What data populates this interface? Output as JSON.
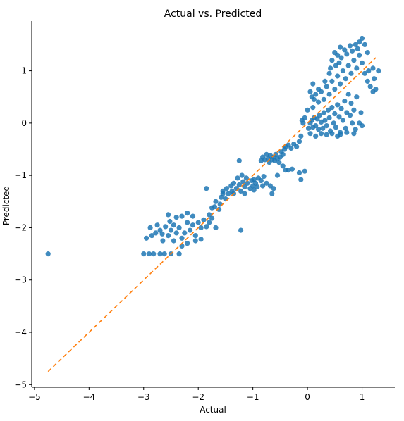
{
  "chart_data": {
    "type": "scatter",
    "title": "Actual vs. Predicted",
    "xlabel": "Actual",
    "ylabel": "Predicted",
    "xlim": [
      -5.05,
      1.6
    ],
    "ylim": [
      -5.05,
      1.95
    ],
    "xticks": [
      -5,
      -4,
      -3,
      -2,
      -1,
      0,
      1
    ],
    "yticks": [
      -5,
      -4,
      -3,
      -2,
      -1,
      0,
      1
    ],
    "xtick_labels": [
      "−5",
      "−4",
      "−3",
      "−2",
      "−1",
      "0",
      "1"
    ],
    "ytick_labels": [
      "−5",
      "−4",
      "−3",
      "−2",
      "−1",
      "0",
      "1"
    ],
    "point_color": "#1f77b4",
    "reference_line": {
      "x": [
        -4.75,
        1.25
      ],
      "y": [
        -4.75,
        1.25
      ],
      "color": "#ff7f0e",
      "style": "dashed"
    },
    "points": [
      [
        -4.75,
        -2.5
      ],
      [
        -3.0,
        -2.5
      ],
      [
        -2.9,
        -2.5
      ],
      [
        -2.82,
        -2.5
      ],
      [
        -2.7,
        -2.5
      ],
      [
        -2.62,
        -2.5
      ],
      [
        -2.5,
        -2.5
      ],
      [
        -2.35,
        -2.5
      ],
      [
        -2.95,
        -2.2
      ],
      [
        -2.85,
        -2.15
      ],
      [
        -2.78,
        -2.1
      ],
      [
        -2.7,
        -2.05
      ],
      [
        -2.66,
        -2.12
      ],
      [
        -2.6,
        -1.98
      ],
      [
        -2.55,
        -2.15
      ],
      [
        -2.5,
        -2.05
      ],
      [
        -2.45,
        -1.95
      ],
      [
        -2.4,
        -2.1
      ],
      [
        -2.35,
        -2.0
      ],
      [
        -2.3,
        -2.2
      ],
      [
        -2.25,
        -2.1
      ],
      [
        -2.2,
        -1.9
      ],
      [
        -2.15,
        -2.05
      ],
      [
        -2.1,
        -1.95
      ],
      [
        -2.05,
        -2.15
      ],
      [
        -2.0,
        -1.9
      ],
      [
        -1.95,
        -2.0
      ],
      [
        -1.9,
        -1.85
      ],
      [
        -1.85,
        -1.98
      ],
      [
        -1.8,
        -1.9
      ],
      [
        -1.75,
        -1.82
      ],
      [
        -1.68,
        -2.0
      ],
      [
        -2.55,
        -1.75
      ],
      [
        -2.4,
        -1.8
      ],
      [
        -2.3,
        -1.78
      ],
      [
        -2.2,
        -1.72
      ],
      [
        -2.1,
        -1.78
      ],
      [
        -2.65,
        -2.25
      ],
      [
        -2.45,
        -2.25
      ],
      [
        -2.3,
        -2.35
      ],
      [
        -2.2,
        -2.3
      ],
      [
        -2.05,
        -2.25
      ],
      [
        -1.95,
        -2.22
      ],
      [
        -2.88,
        -2.0
      ],
      [
        -2.75,
        -1.95
      ],
      [
        -2.52,
        -1.88
      ],
      [
        -1.8,
        -1.75
      ],
      [
        -1.75,
        -1.62
      ],
      [
        -1.7,
        -1.6
      ],
      [
        -1.68,
        -1.5
      ],
      [
        -1.6,
        -1.55
      ],
      [
        -1.58,
        -1.42
      ],
      [
        -1.55,
        -1.3
      ],
      [
        -1.5,
        -1.45
      ],
      [
        -1.48,
        -1.25
      ],
      [
        -1.45,
        -1.35
      ],
      [
        -1.4,
        -1.2
      ],
      [
        -1.38,
        -1.3
      ],
      [
        -1.35,
        -1.15
      ],
      [
        -1.3,
        -1.25
      ],
      [
        -1.28,
        -1.05
      ],
      [
        -1.25,
        -1.18
      ],
      [
        -1.22,
        -1.3
      ],
      [
        -1.2,
        -1.0
      ],
      [
        -1.18,
        -1.12
      ],
      [
        -1.15,
        -1.22
      ],
      [
        -1.12,
        -1.05
      ],
      [
        -1.1,
        -1.15
      ],
      [
        -1.05,
        -1.25
      ],
      [
        -1.02,
        -1.1
      ],
      [
        -1.0,
        -1.2
      ],
      [
        -0.98,
        -1.08
      ],
      [
        -0.95,
        -1.15
      ],
      [
        -0.92,
        -1.22
      ],
      [
        -0.9,
        -1.05
      ],
      [
        -0.85,
        -1.1
      ],
      [
        -0.82,
        -1.2
      ],
      [
        -0.8,
        -1.02
      ],
      [
        -0.75,
        -1.15
      ],
      [
        -0.68,
        -1.2
      ],
      [
        -0.62,
        -1.25
      ],
      [
        -1.85,
        -1.25
      ],
      [
        -1.55,
        -1.35
      ],
      [
        -1.62,
        -1.65
      ],
      [
        -1.35,
        -1.35
      ],
      [
        -1.25,
        -0.72
      ],
      [
        -1.22,
        -2.05
      ],
      [
        -1.15,
        -1.35
      ],
      [
        -0.98,
        -1.28
      ],
      [
        -0.65,
        -1.35
      ],
      [
        -0.55,
        -1.0
      ],
      [
        -0.85,
        -0.72
      ],
      [
        -0.82,
        -0.65
      ],
      [
        -0.78,
        -0.7
      ],
      [
        -0.75,
        -0.6
      ],
      [
        -0.72,
        -0.68
      ],
      [
        -0.7,
        -0.75
      ],
      [
        -0.68,
        -0.62
      ],
      [
        -0.65,
        -0.7
      ],
      [
        -0.62,
        -0.65
      ],
      [
        -0.6,
        -0.72
      ],
      [
        -0.58,
        -0.6
      ],
      [
        -0.55,
        -0.68
      ],
      [
        -0.52,
        -0.75
      ],
      [
        -0.5,
        -0.65
      ],
      [
        -0.48,
        -0.55
      ],
      [
        -0.45,
        -0.6
      ],
      [
        -0.42,
        -0.5
      ],
      [
        -0.4,
        -0.45
      ],
      [
        -0.35,
        -0.42
      ],
      [
        -0.3,
        -0.48
      ],
      [
        -0.25,
        -0.4
      ],
      [
        -0.2,
        -0.45
      ],
      [
        -0.15,
        -0.35
      ],
      [
        -0.12,
        -0.25
      ],
      [
        -0.45,
        -0.82
      ],
      [
        -0.4,
        -0.9
      ],
      [
        -0.35,
        -0.9
      ],
      [
        -0.28,
        -0.88
      ],
      [
        -0.15,
        -0.95
      ],
      [
        -0.12,
        -1.08
      ],
      [
        -0.05,
        -0.92
      ],
      [
        0.02,
        -0.1
      ],
      [
        0.05,
        0.0
      ],
      [
        0.08,
        0.05
      ],
      [
        0.1,
        -0.08
      ],
      [
        0.12,
        0.1
      ],
      [
        0.15,
        -0.05
      ],
      [
        0.18,
        0.08
      ],
      [
        0.2,
        -0.12
      ],
      [
        0.22,
        0.15
      ],
      [
        0.25,
        0.02
      ],
      [
        0.28,
        -0.1
      ],
      [
        0.3,
        0.2
      ],
      [
        0.32,
        0.05
      ],
      [
        0.35,
        -0.05
      ],
      [
        0.38,
        0.25
      ],
      [
        0.4,
        0.1
      ],
      [
        0.42,
        -0.15
      ],
      [
        0.45,
        0.3
      ],
      [
        0.48,
        0.0
      ],
      [
        0.5,
        0.18
      ],
      [
        0.52,
        -0.08
      ],
      [
        0.55,
        0.35
      ],
      [
        0.58,
        0.12
      ],
      [
        0.6,
        -0.18
      ],
      [
        0.62,
        0.28
      ],
      [
        0.65,
        0.05
      ],
      [
        0.68,
        0.42
      ],
      [
        0.7,
        -0.1
      ],
      [
        0.72,
        0.2
      ],
      [
        0.75,
        0.55
      ],
      [
        0.78,
        0.15
      ],
      [
        0.8,
        0.38
      ],
      [
        0.82,
        0.0
      ],
      [
        0.85,
        0.25
      ],
      [
        0.88,
        -0.12
      ],
      [
        0.9,
        0.5
      ],
      [
        0.1,
        0.3
      ],
      [
        0.12,
        0.45
      ],
      [
        0.08,
        0.5
      ],
      [
        0.15,
        0.55
      ],
      [
        0.2,
        0.4
      ],
      [
        0.25,
        0.6
      ],
      [
        0.3,
        0.45
      ],
      [
        0.35,
        0.7
      ],
      [
        0.4,
        0.55
      ],
      [
        0.45,
        0.8
      ],
      [
        0.5,
        0.65
      ],
      [
        0.55,
        0.9
      ],
      [
        0.6,
        0.75
      ],
      [
        0.65,
        1.0
      ],
      [
        0.7,
        0.85
      ],
      [
        0.75,
        1.1
      ],
      [
        0.8,
        0.95
      ],
      [
        0.85,
        1.2
      ],
      [
        0.9,
        1.05
      ],
      [
        0.95,
        1.3
      ],
      [
        1.0,
        1.15
      ],
      [
        1.05,
        0.95
      ],
      [
        1.1,
        0.8
      ],
      [
        1.15,
        0.7
      ],
      [
        1.2,
        0.6
      ],
      [
        1.25,
        0.65
      ],
      [
        1.12,
        1.0
      ],
      [
        1.2,
        1.05
      ],
      [
        1.3,
        1.0
      ],
      [
        1.22,
        0.85
      ],
      [
        0.45,
        1.2
      ],
      [
        0.5,
        1.35
      ],
      [
        0.55,
        1.3
      ],
      [
        0.6,
        1.45
      ],
      [
        0.62,
        1.25
      ],
      [
        0.68,
        1.4
      ],
      [
        0.72,
        1.32
      ],
      [
        0.78,
        1.48
      ],
      [
        0.82,
        1.38
      ],
      [
        0.88,
        1.5
      ],
      [
        0.92,
        1.42
      ],
      [
        0.95,
        1.55
      ],
      [
        1.0,
        1.62
      ],
      [
        1.05,
        1.5
      ],
      [
        1.1,
        1.35
      ],
      [
        0.42,
        1.05
      ],
      [
        0.52,
        1.1
      ],
      [
        0.58,
        1.15
      ],
      [
        0.05,
        -0.2
      ],
      [
        0.15,
        -0.25
      ],
      [
        0.25,
        -0.2
      ],
      [
        0.35,
        -0.22
      ],
      [
        0.45,
        -0.2
      ],
      [
        0.55,
        -0.25
      ],
      [
        0.6,
        -0.22
      ],
      [
        0.72,
        -0.18
      ],
      [
        0.85,
        -0.2
      ],
      [
        0.95,
        0.0
      ],
      [
        0.98,
        0.2
      ],
      [
        1.0,
        -0.05
      ],
      [
        -0.05,
        0.1
      ],
      [
        -0.08,
        0.0
      ],
      [
        0.0,
        0.25
      ],
      [
        -0.1,
        0.05
      ],
      [
        0.05,
        0.6
      ],
      [
        0.1,
        0.75
      ],
      [
        0.2,
        0.65
      ],
      [
        0.32,
        0.8
      ],
      [
        0.4,
        0.95
      ]
    ]
  }
}
